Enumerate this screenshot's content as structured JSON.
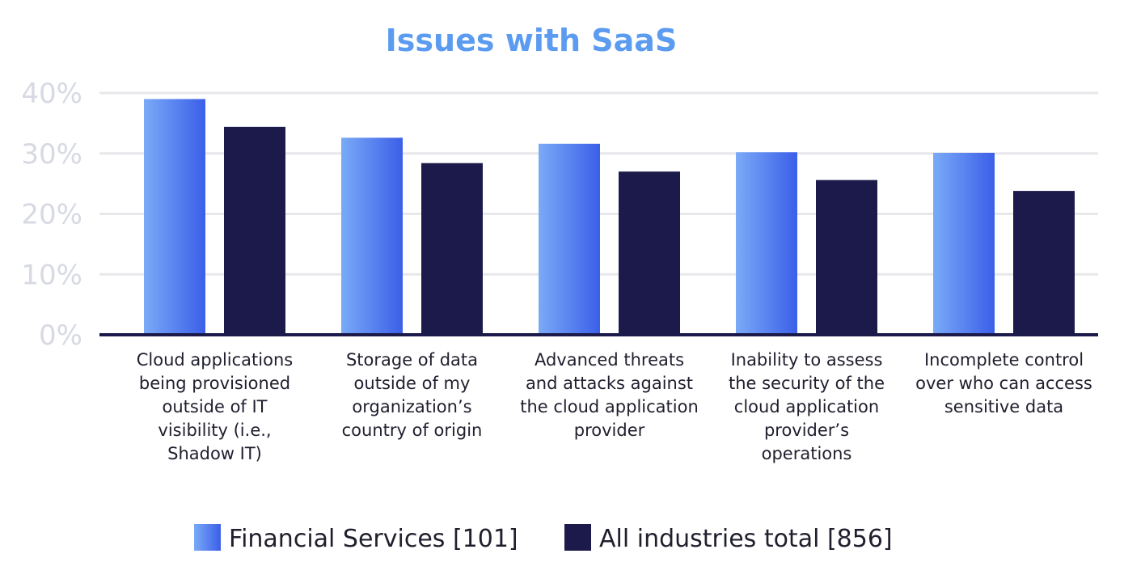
{
  "chart_data": {
    "type": "bar",
    "title": "Issues with SaaS",
    "xlabel": "",
    "ylabel": "",
    "ylim": [
      0,
      40
    ],
    "yticks": [
      0,
      10,
      20,
      30,
      40
    ],
    "ytick_labels": [
      "0%",
      "10%",
      "20%",
      "30%",
      "40%"
    ],
    "grid": true,
    "legend_position": "bottom",
    "categories": [
      [
        "Cloud applications",
        "being provisioned",
        "outside of IT",
        "visibility (i.e.,",
        "Shadow IT)"
      ],
      [
        "Storage of data",
        "outside of my",
        "organization’s",
        "country of origin"
      ],
      [
        "Advanced threats",
        "and attacks against",
        "the cloud application",
        "provider"
      ],
      [
        "Inability to assess",
        "the security of the",
        "cloud application",
        "provider’s",
        "operations"
      ],
      [
        "Incomplete control",
        "over who can access",
        "sensitive data"
      ]
    ],
    "series": [
      {
        "name": "Financial Services [101]",
        "values": [
          39,
          32.6,
          31.6,
          30.2,
          30.1
        ],
        "color": "#4f7ef2",
        "gradient": [
          "#7aaaf7",
          "#3b5fe8"
        ]
      },
      {
        "name": "All industries total [856]",
        "values": [
          34.4,
          28.4,
          27,
          25.6,
          23.8
        ],
        "color": "#1c1a4a"
      }
    ],
    "colors": {
      "title": "#5b9bf0",
      "gridline": "#e8e8ec",
      "axis": "#1c1a4a",
      "tick_text": "#d7d9e3"
    }
  }
}
